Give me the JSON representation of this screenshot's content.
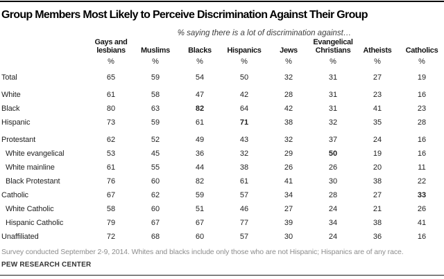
{
  "chart_data": {
    "type": "table",
    "title": "Group Members Most Likely to Perceive Discrimination Against Their Group",
    "subtitle": "% saying there is a lot of discrimination against…",
    "columns": [
      "Gays and lesbians",
      "Muslims",
      "Blacks",
      "Hispanics",
      "Jews",
      "Evangelical Christians",
      "Atheists",
      "Catholics"
    ],
    "units": [
      "%",
      "%",
      "%",
      "%",
      "%",
      "%",
      "%",
      "%"
    ],
    "rows": [
      {
        "label": "Total",
        "indent": false,
        "gap_before": false,
        "values": [
          65,
          59,
          54,
          50,
          32,
          31,
          27,
          19
        ],
        "bold_cols": []
      },
      {
        "label": "White",
        "indent": false,
        "gap_before": true,
        "values": [
          61,
          58,
          47,
          42,
          28,
          31,
          23,
          16
        ],
        "bold_cols": []
      },
      {
        "label": "Black",
        "indent": false,
        "gap_before": false,
        "values": [
          80,
          63,
          82,
          64,
          42,
          31,
          41,
          23
        ],
        "bold_cols": [
          2
        ]
      },
      {
        "label": "Hispanic",
        "indent": false,
        "gap_before": false,
        "values": [
          73,
          59,
          61,
          71,
          38,
          32,
          35,
          28
        ],
        "bold_cols": [
          3
        ]
      },
      {
        "label": "Protestant",
        "indent": false,
        "gap_before": true,
        "values": [
          62,
          52,
          49,
          43,
          32,
          37,
          24,
          16
        ],
        "bold_cols": []
      },
      {
        "label": "White evangelical",
        "indent": true,
        "gap_before": false,
        "values": [
          53,
          45,
          36,
          32,
          29,
          50,
          19,
          16
        ],
        "bold_cols": [
          5
        ]
      },
      {
        "label": "White mainline",
        "indent": true,
        "gap_before": false,
        "values": [
          61,
          55,
          44,
          38,
          26,
          26,
          20,
          11
        ],
        "bold_cols": []
      },
      {
        "label": "Black Protestant",
        "indent": true,
        "gap_before": false,
        "values": [
          76,
          60,
          82,
          61,
          41,
          30,
          38,
          22
        ],
        "bold_cols": []
      },
      {
        "label": "Catholic",
        "indent": false,
        "gap_before": false,
        "values": [
          67,
          62,
          59,
          57,
          34,
          28,
          27,
          33
        ],
        "bold_cols": [
          7
        ]
      },
      {
        "label": "White Catholic",
        "indent": true,
        "gap_before": false,
        "values": [
          58,
          60,
          51,
          46,
          27,
          24,
          21,
          26
        ],
        "bold_cols": []
      },
      {
        "label": "Hispanic Catholic",
        "indent": true,
        "gap_before": false,
        "values": [
          79,
          67,
          67,
          77,
          39,
          34,
          38,
          41
        ],
        "bold_cols": []
      },
      {
        "label": "Unaffiliated",
        "indent": false,
        "gap_before": false,
        "values": [
          72,
          68,
          60,
          57,
          30,
          24,
          36,
          16
        ],
        "bold_cols": []
      }
    ]
  },
  "footer": {
    "note": "Survey conducted September 2-9, 2014. Whites and blacks include only those who are not Hispanic; Hispanics are of any race.",
    "source": "PEW RESEARCH CENTER"
  }
}
